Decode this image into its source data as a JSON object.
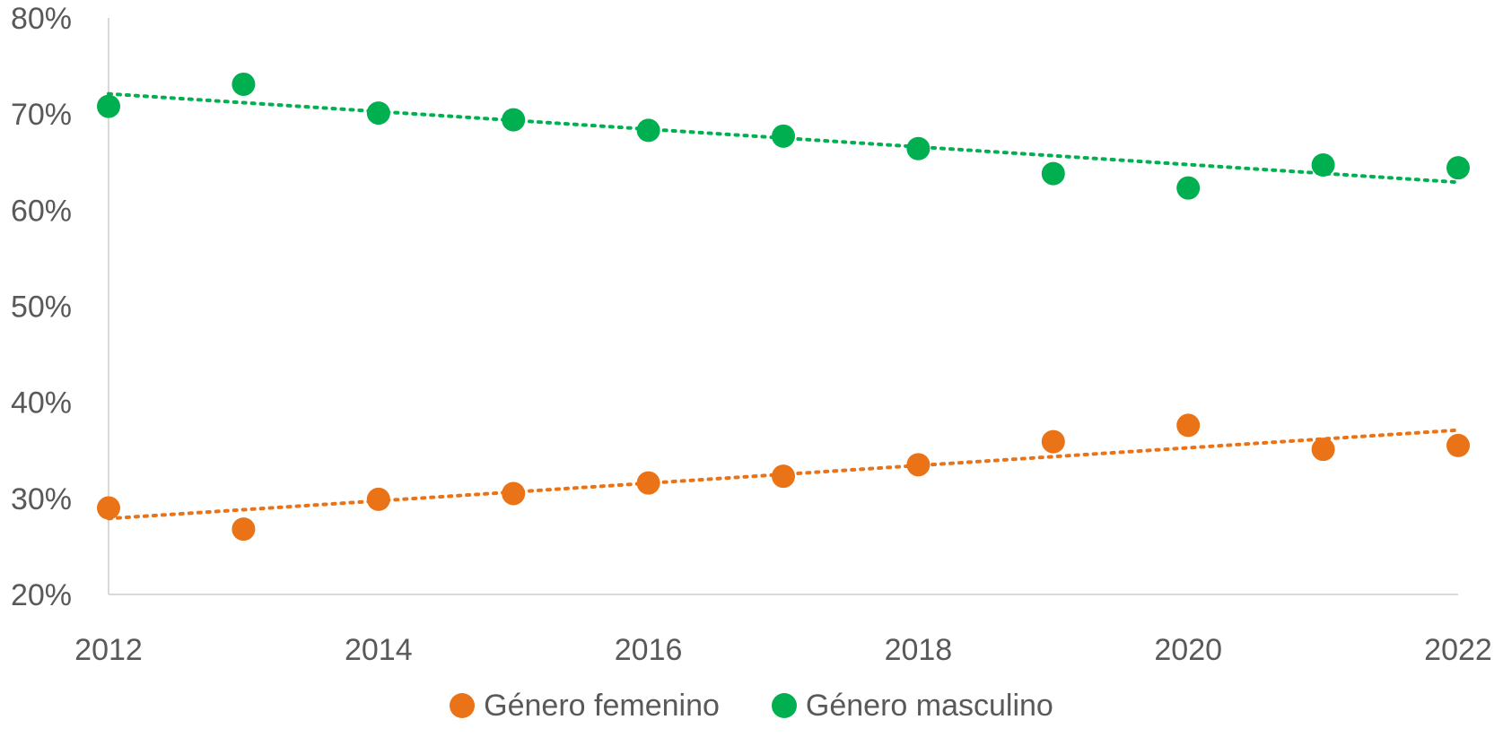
{
  "chart_data": {
    "type": "scatter",
    "title": "",
    "xlabel": "",
    "ylabel": "",
    "x": [
      2012,
      2013,
      2014,
      2015,
      2016,
      2017,
      2018,
      2019,
      2020,
      2021,
      2022
    ],
    "xlim": [
      2012,
      2022
    ],
    "ylim": [
      20,
      80
    ],
    "x_ticks": [
      "2012",
      "2014",
      "2016",
      "2018",
      "2020",
      "2022"
    ],
    "y_ticks": [
      "20%",
      "30%",
      "40%",
      "50%",
      "60%",
      "70%",
      "80%"
    ],
    "grid": false,
    "legend_position": "bottom",
    "series": [
      {
        "name": "Género femenino",
        "color": "#E97316",
        "values": [
          29.0,
          26.8,
          29.9,
          30.5,
          31.6,
          32.3,
          33.5,
          35.9,
          37.6,
          35.1,
          35.5
        ],
        "trendline": {
          "type": "linear",
          "start": 27.9,
          "end": 37.1
        }
      },
      {
        "name": "Género masculino",
        "color": "#00B050",
        "values": [
          70.8,
          73.1,
          70.1,
          69.4,
          68.3,
          67.7,
          66.4,
          63.8,
          62.3,
          64.7,
          64.4
        ],
        "trendline": {
          "type": "linear",
          "start": 72.1,
          "end": 62.9
        }
      }
    ]
  }
}
